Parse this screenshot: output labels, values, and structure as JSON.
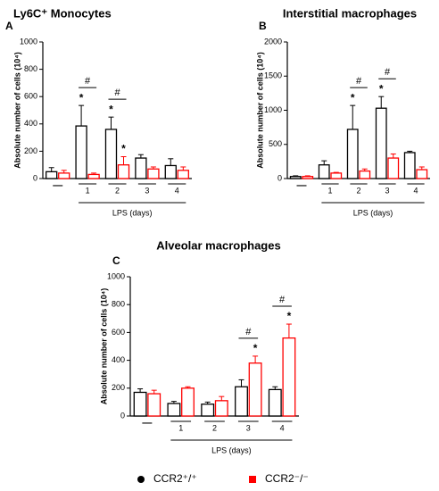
{
  "chart_data": [
    {
      "type": "bar",
      "title": "Ly6C⁺ Monocytes",
      "panel": "A",
      "ylabel": "Absolute number of cells (10⁴)",
      "xlabel": "LPS (days)",
      "categories": [
        "—",
        "1",
        "2",
        "3",
        "4"
      ],
      "ylim": [
        0,
        1000
      ],
      "yticks": [
        0,
        200,
        400,
        600,
        800,
        1000
      ],
      "series": [
        {
          "color": "#000000",
          "values": [
            50,
            385,
            360,
            150,
            95
          ],
          "errors": [
            30,
            150,
            90,
            25,
            50
          ],
          "labels": [
            null,
            "*",
            "*",
            null,
            null
          ]
        },
        {
          "color": "#ff0000",
          "values": [
            40,
            30,
            100,
            70,
            60
          ],
          "errors": [
            20,
            10,
            60,
            15,
            25
          ],
          "labels": [
            null,
            null,
            "*",
            null,
            null
          ]
        }
      ],
      "comparisons": [
        null,
        "#",
        "#",
        null,
        null
      ]
    },
    {
      "type": "bar",
      "title": "Interstitial macrophages",
      "panel": "B",
      "ylabel": "Absolute number of cells (10⁴)",
      "xlabel": "LPS (days)",
      "categories": [
        "—",
        "1",
        "2",
        "3",
        "4"
      ],
      "ylim": [
        0,
        2000
      ],
      "yticks": [
        0,
        500,
        1000,
        1500,
        2000
      ],
      "series": [
        {
          "color": "#000000",
          "values": [
            30,
            200,
            720,
            1030,
            380
          ],
          "errors": [
            10,
            60,
            350,
            170,
            20
          ],
          "labels": [
            null,
            null,
            "*",
            "*",
            null
          ]
        },
        {
          "color": "#ff0000",
          "values": [
            30,
            80,
            110,
            300,
            130
          ],
          "errors": [
            10,
            10,
            30,
            60,
            40
          ],
          "labels": [
            null,
            null,
            null,
            null,
            null
          ]
        }
      ],
      "comparisons": [
        null,
        null,
        "#",
        "#",
        null
      ]
    },
    {
      "type": "bar",
      "title": "Alveolar macrophages",
      "panel": "C",
      "ylabel": "Absolute number of cells (10⁴)",
      "xlabel": "LPS (days)",
      "categories": [
        "—",
        "1",
        "2",
        "3",
        "4"
      ],
      "ylim": [
        0,
        1000
      ],
      "yticks": [
        0,
        200,
        400,
        600,
        800,
        1000
      ],
      "series": [
        {
          "color": "#000000",
          "values": [
            170,
            90,
            85,
            210,
            190
          ],
          "errors": [
            25,
            15,
            15,
            50,
            20
          ],
          "labels": [
            null,
            null,
            null,
            null,
            null
          ]
        },
        {
          "color": "#ff0000",
          "values": [
            160,
            200,
            110,
            380,
            560
          ],
          "errors": [
            25,
            10,
            30,
            50,
            100
          ],
          "labels": [
            null,
            null,
            null,
            "*",
            "*"
          ]
        }
      ],
      "comparisons": [
        null,
        null,
        null,
        "#",
        "#"
      ]
    }
  ],
  "legend": {
    "items": [
      {
        "name": "CCR2⁺/⁺",
        "color": "#000000",
        "marker": "circle"
      },
      {
        "name": "CCR2⁻/⁻",
        "color": "#ff0000",
        "marker": "square"
      }
    ]
  }
}
